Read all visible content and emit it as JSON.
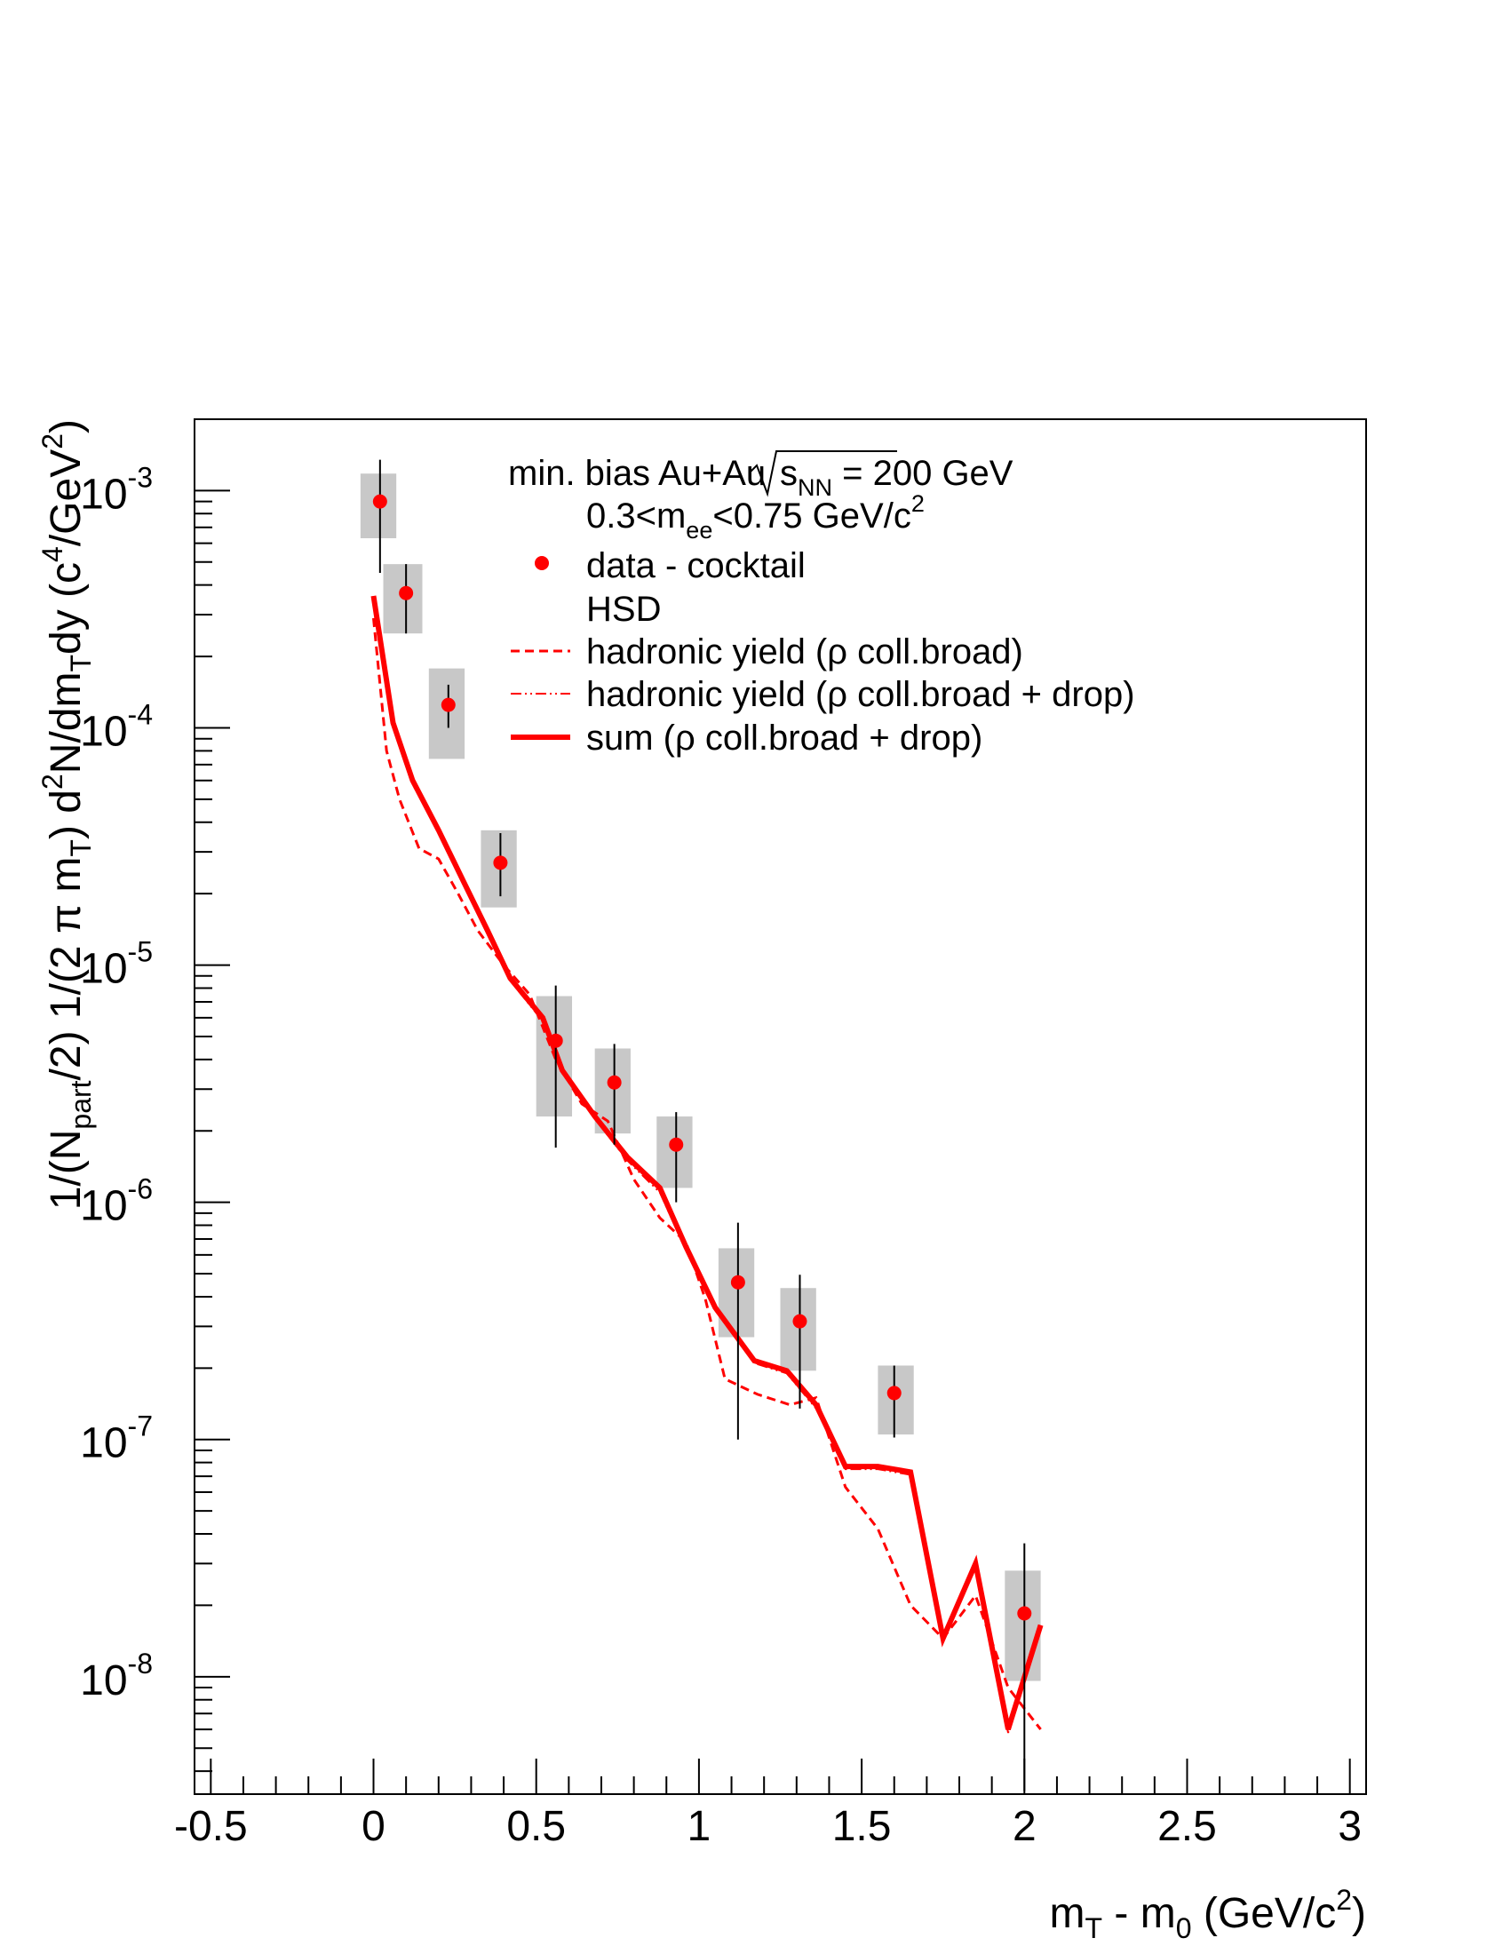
{
  "chart_data": {
    "type": "scatter",
    "title": "",
    "xlabel_main": "m",
    "xlabel_sub1": "T",
    "xlabel_mid": " - m",
    "xlabel_sub2": "0",
    "xlabel_end": " (GeV/c",
    "xlabel_sup": "2",
    "xlabel_close": ")",
    "ylabel_parts": {
      "p1": "1/(N",
      "p1_sub": "part",
      "p2": "/2) 1/(2 ",
      "pi": "π",
      "p3": " m",
      "p3_sub": "T",
      "p4": ") d",
      "p4_sup": "2",
      "p5": "N/dm",
      "p5_sub": "T",
      "p6": "dy (c",
      "p6_sup": "4",
      "p7": "/GeV",
      "p7_sup": "2",
      "p8": ")"
    },
    "xlim": [
      -0.55,
      3.05
    ],
    "ylim": [
      3.2e-09,
      0.002
    ],
    "yscale": "log",
    "x_ticks": [
      {
        "value": -0.5,
        "label": "-0.5"
      },
      {
        "value": 0,
        "label": "0"
      },
      {
        "value": 0.5,
        "label": "0.5"
      },
      {
        "value": 1,
        "label": "1"
      },
      {
        "value": 1.5,
        "label": "1.5"
      },
      {
        "value": 2,
        "label": "2"
      },
      {
        "value": 2.5,
        "label": "2.5"
      },
      {
        "value": 3,
        "label": "3"
      }
    ],
    "y_ticks": [
      {
        "value": 1e-08,
        "base": "10",
        "exp": "-8"
      },
      {
        "value": 1e-07,
        "base": "10",
        "exp": "-7"
      },
      {
        "value": 1e-06,
        "base": "10",
        "exp": "-6"
      },
      {
        "value": 1e-05,
        "base": "10",
        "exp": "-5"
      },
      {
        "value": 0.0001,
        "base": "10",
        "exp": "-4"
      },
      {
        "value": 0.001,
        "base": "10",
        "exp": "-3"
      }
    ],
    "legend": {
      "placement": "top-right",
      "header1": "min. bias Au+Au",
      "header1_sqrt": "s",
      "header1_sqrt_sub": "NN",
      "header1_end": " = 200 GeV",
      "header2_a": "0.3<m",
      "header2_sub": "ee",
      "header2_b": "<0.75 GeV/c",
      "header2_sup": "2",
      "entry_data": "data - cocktail",
      "entry_hsd": "HSD",
      "entry_broad": "hadronic yield (ρ coll.broad)",
      "entry_drop": "hadronic yield (ρ coll.broad + drop)",
      "entry_sum": "sum (ρ coll.broad + drop)"
    },
    "colors": {
      "data": "#ff0000",
      "sys_box": "#c8c8c8",
      "error_bar": "#000000",
      "axis": "#000000"
    },
    "data_points": [
      {
        "x": 0.02,
        "y": 0.0009,
        "err_lo": 0.00045,
        "err_hi": 0.00135,
        "sys_lo": 0.00063,
        "sys_hi": 0.00118,
        "box_x0": -0.04,
        "box_x1": 0.07
      },
      {
        "x": 0.1,
        "y": 0.00037,
        "err_lo": 0.00025,
        "err_hi": 0.00049,
        "sys_lo": 0.00025,
        "sys_hi": 0.00049,
        "box_x0": 0.03,
        "box_x1": 0.15
      },
      {
        "x": 0.23,
        "y": 0.000125,
        "err_lo": 0.0001,
        "err_hi": 0.000152,
        "sys_lo": 7.4e-05,
        "sys_hi": 0.000178,
        "box_x0": 0.17,
        "box_x1": 0.28
      },
      {
        "x": 0.39,
        "y": 2.7e-05,
        "err_lo": 1.95e-05,
        "err_hi": 3.6e-05,
        "sys_lo": 1.75e-05,
        "sys_hi": 3.7e-05,
        "box_x0": 0.33,
        "box_x1": 0.44
      },
      {
        "x": 0.56,
        "y": 4.8e-06,
        "err_lo": 1.7e-06,
        "err_hi": 8.2e-06,
        "sys_lo": 2.3e-06,
        "sys_hi": 7.4e-06,
        "box_x0": 0.5,
        "box_x1": 0.61
      },
      {
        "x": 0.74,
        "y": 3.2e-06,
        "err_lo": 1.75e-06,
        "err_hi": 4.65e-06,
        "sys_lo": 1.95e-06,
        "sys_hi": 4.45e-06,
        "box_x0": 0.68,
        "box_x1": 0.79
      },
      {
        "x": 0.93,
        "y": 1.75e-06,
        "err_lo": 1e-06,
        "err_hi": 2.4e-06,
        "sys_lo": 1.15e-06,
        "sys_hi": 2.3e-06,
        "box_x0": 0.87,
        "box_x1": 0.98
      },
      {
        "x": 1.12,
        "y": 4.6e-07,
        "err_lo": 1e-07,
        "err_hi": 8.2e-07,
        "sys_lo": 2.7e-07,
        "sys_hi": 6.4e-07,
        "box_x0": 1.06,
        "box_x1": 1.17
      },
      {
        "x": 1.31,
        "y": 3.15e-07,
        "err_lo": 1.35e-07,
        "err_hi": 4.95e-07,
        "sys_lo": 1.95e-07,
        "sys_hi": 4.35e-07,
        "box_x0": 1.25,
        "box_x1": 1.36
      },
      {
        "x": 1.6,
        "y": 1.57e-07,
        "err_lo": 1.02e-07,
        "err_hi": 2.05e-07,
        "sys_lo": 1.05e-07,
        "sys_hi": 2.05e-07,
        "box_x0": 1.55,
        "box_x1": 1.66
      },
      {
        "x": 2.0,
        "y": 1.85e-08,
        "err_lo": 3.3e-09,
        "err_hi": 3.65e-08,
        "sys_lo": 9.6e-09,
        "sys_hi": 2.8e-08,
        "box_x0": 1.94,
        "box_x1": 2.05
      }
    ],
    "series": [
      {
        "name": "sum (ρ coll.broad + drop)",
        "style": "solid",
        "x": [
          0.0,
          0.06,
          0.12,
          0.2,
          0.28,
          0.35,
          0.42,
          0.52,
          0.58,
          0.68,
          0.78,
          0.88,
          0.96,
          1.05,
          1.17,
          1.27,
          1.36,
          1.45,
          1.55,
          1.65,
          1.75,
          1.85,
          1.95,
          2.05
        ],
        "y": [
          0.00036,
          0.000105,
          6e-05,
          3.7e-05,
          2.2e-05,
          1.4e-05,
          8.8e-06,
          6e-06,
          3.6e-06,
          2.3e-06,
          1.55e-06,
          1.15e-06,
          6.5e-07,
          3.6e-07,
          2.15e-07,
          1.95e-07,
          1.4e-07,
          7.7e-08,
          7.7e-08,
          7.3e-08,
          1.45e-08,
          3e-08,
          6e-09,
          1.65e-08
        ]
      },
      {
        "name": "hadronic yield (ρ coll.broad)",
        "style": "dashed",
        "x": [
          0.0,
          0.04,
          0.08,
          0.14,
          0.2,
          0.26,
          0.32,
          0.4,
          0.48,
          0.56,
          0.64,
          0.72,
          0.8,
          0.88,
          0.96,
          1.02,
          1.08,
          1.18,
          1.28,
          1.36,
          1.45,
          1.55,
          1.65,
          1.75,
          1.85,
          1.95,
          2.05
        ],
        "y": [
          0.00029,
          8e-05,
          5e-05,
          3.1e-05,
          2.8e-05,
          2e-05,
          1.4e-05,
          1e-05,
          7.5e-06,
          4e-06,
          2.6e-06,
          2.2e-06,
          1.25e-06,
          8.6e-07,
          6.8e-07,
          3.9e-07,
          1.8e-07,
          1.55e-07,
          1.4e-07,
          1.5e-07,
          6.3e-08,
          4.2e-08,
          2e-08,
          1.45e-08,
          2.2e-08,
          9e-09,
          6e-09
        ]
      },
      {
        "name": "hadronic yield (ρ coll.broad + drop)",
        "style": "dashdot",
        "x": [
          0.0,
          0.06,
          0.12,
          0.2,
          0.28,
          0.35,
          0.42,
          0.52,
          0.58,
          0.68,
          0.78,
          0.88,
          0.96,
          1.05,
          1.17,
          1.27,
          1.36,
          1.45,
          1.55,
          1.65,
          1.75,
          1.85,
          1.95,
          2.05
        ],
        "y": [
          0.00035,
          0.000102,
          5.8e-05,
          3.6e-05,
          2.15e-05,
          1.35e-05,
          8.6e-06,
          5.8e-06,
          3.5e-06,
          2.25e-06,
          1.5e-06,
          1.1e-06,
          6.3e-07,
          3.5e-07,
          2.1e-07,
          1.9e-07,
          1.35e-07,
          7.5e-08,
          7.5e-08,
          7.1e-08,
          1.4e-08,
          2.9e-08,
          5.8e-09,
          1.6e-08
        ]
      }
    ]
  }
}
